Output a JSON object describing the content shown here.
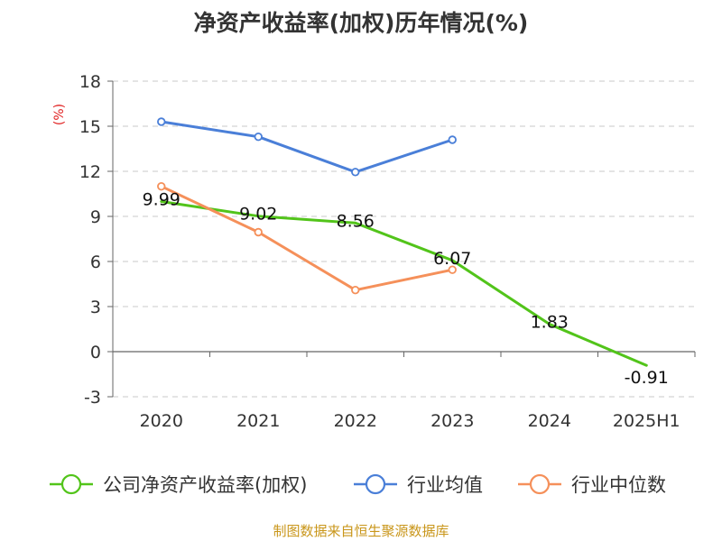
{
  "chart_data": {
    "type": "line",
    "title": "净资产收益率(加权)历年情况(%)",
    "ylabel": "(%)",
    "xlabel": "",
    "categories": [
      "2020",
      "2021",
      "2022",
      "2023",
      "2024",
      "2025H1"
    ],
    "ylim": [
      -3,
      18
    ],
    "yticks": [
      -3,
      0,
      3,
      6,
      9,
      12,
      15,
      18
    ],
    "grid": true,
    "legend_position": "bottom",
    "series": [
      {
        "name": "公司净资产收益率(加权)",
        "color": "#52c41a",
        "values": [
          9.99,
          9.02,
          8.56,
          6.07,
          1.83,
          -0.91
        ],
        "data_labels": [
          "9.99",
          "9.02",
          "8.56",
          "6.07",
          "1.83",
          "-0.91"
        ],
        "markers": false
      },
      {
        "name": "行业均值",
        "color": "#4a7fd8",
        "values": [
          15.3,
          14.3,
          11.95,
          14.1,
          null,
          null
        ],
        "markers": true
      },
      {
        "name": "行业中位数",
        "color": "#f5905a",
        "values": [
          11.0,
          7.95,
          4.1,
          5.45,
          null,
          null
        ],
        "markers": true
      }
    ]
  },
  "source": "制图数据来自恒生聚源数据库"
}
